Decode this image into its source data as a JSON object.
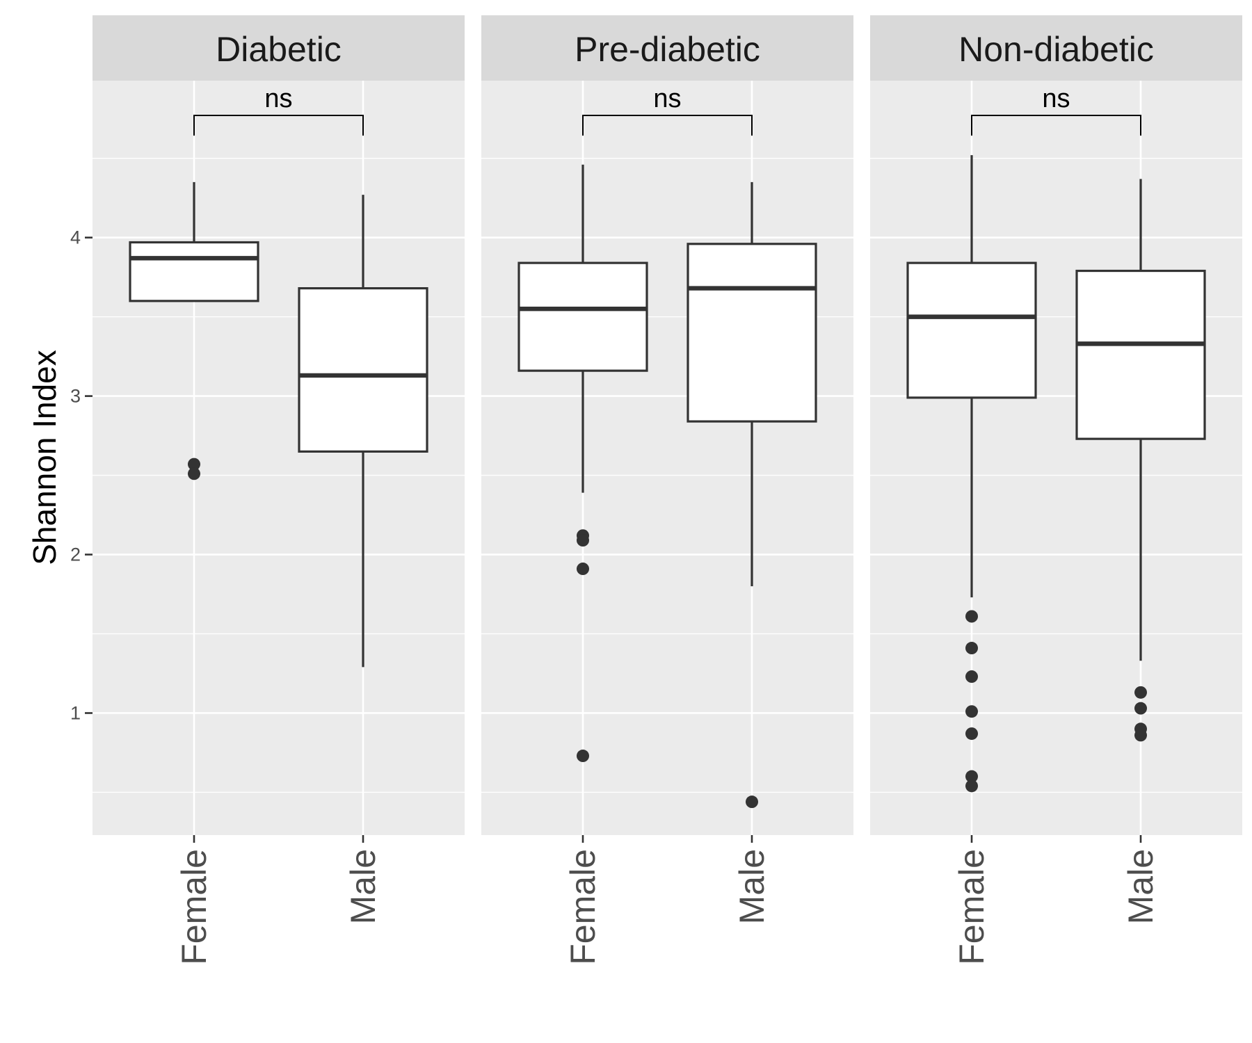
{
  "chart_data": {
    "type": "boxplot",
    "ylabel": "Shannon Index",
    "xlabel": "",
    "ylim": [
      0.23,
      4.99
    ],
    "yticks": [
      1,
      2,
      3,
      4
    ],
    "ytick_labels": [
      "1",
      "2",
      "3",
      "4"
    ],
    "grid": true,
    "categories": [
      "Female",
      "Male"
    ],
    "facets": [
      {
        "label": "Diabetic",
        "comparison": "ns",
        "boxes": [
          {
            "category": "Female",
            "lower_whisker": 3.6,
            "q1": 3.6,
            "median": 3.87,
            "q3": 3.97,
            "upper_whisker": 4.35,
            "outliers": [
              2.57,
              2.51
            ]
          },
          {
            "category": "Male",
            "lower_whisker": 1.29,
            "q1": 2.65,
            "median": 3.13,
            "q3": 3.68,
            "upper_whisker": 4.27,
            "outliers": []
          }
        ]
      },
      {
        "label": "Pre-diabetic",
        "comparison": "ns",
        "boxes": [
          {
            "category": "Female",
            "lower_whisker": 2.39,
            "q1": 3.16,
            "median": 3.55,
            "q3": 3.84,
            "upper_whisker": 4.46,
            "outliers": [
              2.12,
              2.09,
              1.91,
              0.73
            ]
          },
          {
            "category": "Male",
            "lower_whisker": 1.8,
            "q1": 2.84,
            "median": 3.68,
            "q3": 3.96,
            "upper_whisker": 4.35,
            "outliers": [
              0.44
            ]
          }
        ]
      },
      {
        "label": "Non-diabetic",
        "comparison": "ns",
        "boxes": [
          {
            "category": "Female",
            "lower_whisker": 1.73,
            "q1": 2.99,
            "median": 3.5,
            "q3": 3.84,
            "upper_whisker": 4.52,
            "outliers": [
              1.61,
              1.41,
              1.23,
              1.01,
              0.87,
              0.6,
              0.54
            ]
          },
          {
            "category": "Male",
            "lower_whisker": 1.33,
            "q1": 2.73,
            "median": 3.33,
            "q3": 3.79,
            "upper_whisker": 4.37,
            "outliers": [
              1.13,
              1.03,
              0.9,
              0.86
            ]
          }
        ]
      }
    ]
  },
  "colors": {
    "panel_bg": "#ebebeb",
    "strip_bg": "#d9d9d9",
    "grid": "#ffffff",
    "box_line": "#333333",
    "box_fill": "#ffffff",
    "text": "#1a1a1a",
    "tick_text": "#4d4d4d"
  }
}
